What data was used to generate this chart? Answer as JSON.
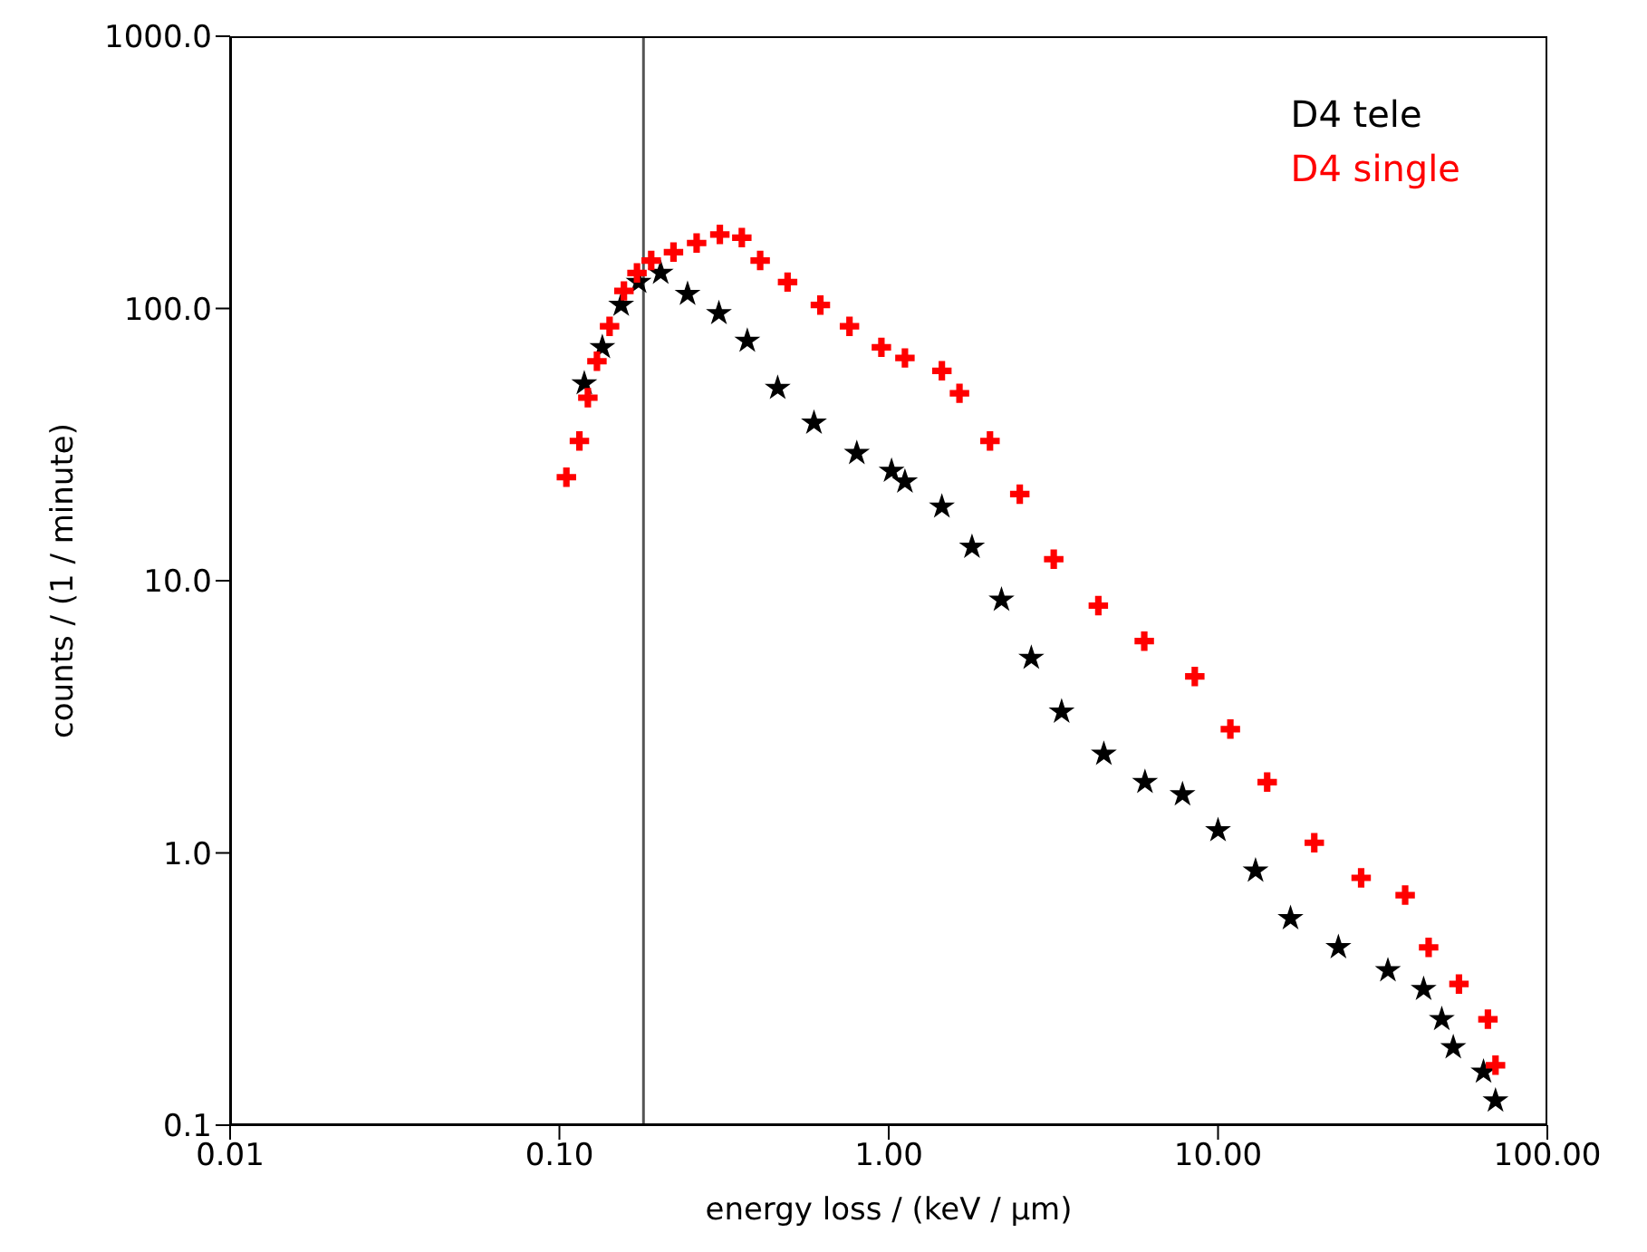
{
  "chart_data": {
    "type": "scatter",
    "xlabel": "energy loss / (keV / μm)",
    "ylabel": "counts / (1 / minute)",
    "log": "xy",
    "grid": false,
    "legend": "top right",
    "xlim": [
      0.01,
      100
    ],
    "xticks": [
      {
        "value": 0.01,
        "label": "0.01"
      },
      {
        "value": 0.1,
        "label": "0.10"
      },
      {
        "value": 1,
        "label": "1.00"
      },
      {
        "value": 10,
        "label": "10.00"
      },
      {
        "value": 100,
        "label": "100.00"
      }
    ],
    "ylim": [
      0.1,
      1000
    ],
    "yticks": [
      {
        "value": 0.1,
        "label": "0.1"
      },
      {
        "value": 1,
        "label": "1.0"
      },
      {
        "value": 10,
        "label": "10.0"
      },
      {
        "value": 100,
        "label": "100.0"
      },
      {
        "value": 1000,
        "label": "1000.0"
      }
    ],
    "ref_lines": [
      {
        "axis": "x",
        "value": 0.18,
        "color": "#555555"
      }
    ],
    "series": [
      {
        "name": "D4 tele",
        "color": "#000000",
        "marker": "star",
        "x": [
          0.119,
          0.135,
          0.154,
          0.174,
          0.203,
          0.245,
          0.305,
          0.372,
          0.46,
          0.593,
          0.8,
          1.02,
          1.12,
          1.45,
          1.79,
          2.2,
          2.71,
          3.35,
          4.5,
          6.0,
          7.8,
          10.0,
          13.0,
          16.6,
          23.2,
          32.8,
          42.1,
          47.8,
          51.8,
          64,
          69.6
        ],
        "values": [
          53,
          72,
          103,
          125,
          135,
          113,
          96,
          76,
          51,
          38,
          29.4,
          25.3,
          23.1,
          18.7,
          13.3,
          8.5,
          5.2,
          3.3,
          2.31,
          1.82,
          1.64,
          1.21,
          0.86,
          0.575,
          0.45,
          0.37,
          0.316,
          0.245,
          0.193,
          0.157,
          0.123
        ]
      },
      {
        "name": "D4 single",
        "color": "#ff0000",
        "marker": "cross",
        "x": [
          0.105,
          0.115,
          0.122,
          0.13,
          0.142,
          0.157,
          0.172,
          0.19,
          0.222,
          0.261,
          0.307,
          0.358,
          0.407,
          0.493,
          0.62,
          0.76,
          0.95,
          1.12,
          1.45,
          1.64,
          2.03,
          2.5,
          3.17,
          4.33,
          5.97,
          8.5,
          10.9,
          14.1,
          19.6,
          27.2,
          37,
          43.6,
          53.9,
          66,
          69.6
        ],
        "values": [
          24,
          32.6,
          47,
          64,
          86,
          116,
          135,
          150,
          161,
          174,
          187,
          182,
          150,
          125,
          103,
          86,
          72,
          65.8,
          59,
          48.8,
          32.6,
          20.8,
          12,
          8.1,
          6.0,
          4.45,
          2.85,
          1.82,
          1.09,
          0.81,
          0.7,
          0.45,
          0.33,
          0.245,
          0.166
        ]
      }
    ]
  }
}
